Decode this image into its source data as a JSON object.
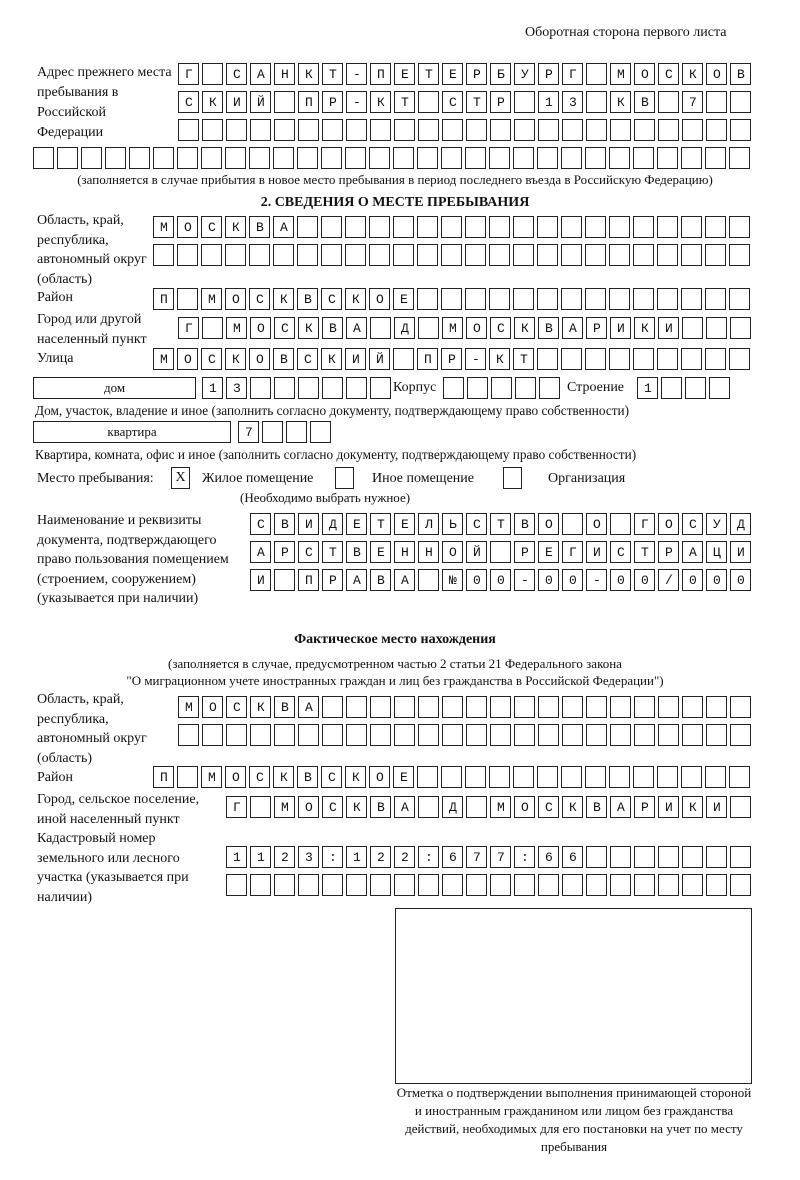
{
  "header": "Оборотная сторона первого листа",
  "previous_address": {
    "label": "Адрес прежнего места пребывания в Российской Федерации",
    "rows": [
      "Г САНКТ-ПЕТЕРБУРГ МОСКОВ",
      "СКИЙ ПР-КТ СТР 13 КВ 7",
      "",
      ""
    ],
    "note": "(заполняется в случае прибытия в новое место пребывания в период последнего въезда в Российскую Федерацию)"
  },
  "section2": {
    "title": "2. СВЕДЕНИЯ О МЕСТЕ ПРЕБЫВАНИЯ",
    "region_label": "Область, край, республика, автономный округ (область)",
    "region_rows": [
      "МОСКВА",
      ""
    ],
    "district_label": "Район",
    "district": "П МОСКВСКОЕ",
    "city_label": "Город или другой населенный пункт",
    "city": "Г МОСКВА Д МОСКВАРИКИ",
    "street_label": "Улица",
    "street": "МОСКОВСКИЙ ПР-КТ",
    "house_type": "дом",
    "house_number": "13",
    "korpus_label": "Корпус",
    "korpus": "",
    "building_label": "Строение",
    "building": "1",
    "house_note": "Дом, участок, владение и иное (заполнить согласно документу, подтверждающему право собственности)",
    "apartment_type": "квартира",
    "apartment_number": "7",
    "apartment_note": "Квартира, комната, офис и иное (заполнить согласно документу, подтверждающему право собственности)",
    "stay_place_label": "Место пребывания:",
    "options": [
      {
        "label": "Жилое помещение",
        "mark": "X"
      },
      {
        "label": "Иное помещение",
        "mark": ""
      },
      {
        "label": "Организация",
        "mark": ""
      }
    ],
    "options_note": "(Необходимо выбрать нужное)",
    "document_label": "Наименование и реквизиты документа, подтверждающего право пользования помещением (строением, сооружением) (указывается при наличии)",
    "document_rows": [
      "СВИДЕТЕЛЬСТВО О ГОСУД",
      "АРСТВЕННОЙ РЕГИСТРАЦИ",
      "И ПРАВА №00-00-00/000"
    ]
  },
  "actual": {
    "title": "Фактическое место нахождения",
    "note1": "(заполняется в случае, предусмотренном частью 2 статьи 21 Федерального закона",
    "note2": "\"О миграционном учете иностранных граждан и лиц без гражданства в Российской Федерации\")",
    "region_label": "Область, край, республика, автономный округ (область)",
    "region_rows": [
      "МОСКВА",
      ""
    ],
    "district_label": "Район",
    "district": "П МОСКВСКОЕ",
    "city_label": "Город, сельское поселение, иной населенный пункт",
    "city": "Г МОСКВА Д МОСКВАРИКИ",
    "cadastral_label": "Кадастровый номер земельного или лесного участка (указывается при наличии)",
    "cadastral_rows": [
      "1123:122:677:66",
      ""
    ]
  },
  "confirmation_note": "Отметка о подтверждении выполнения принимающей стороной и иностранным гражданином или лицом без гражданства действий, необходимых для его постановки на учет по месту пребывания"
}
